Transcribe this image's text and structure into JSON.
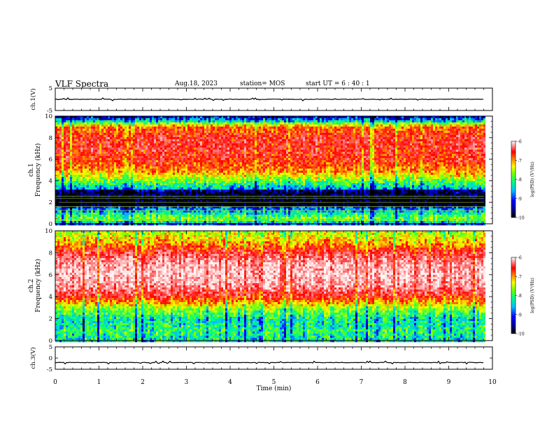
{
  "header": {
    "title": "VLF Spectra",
    "date": "Aug.18, 2023",
    "station": "station= MOS",
    "start": "start  UT  =   6  : 40 : 1"
  },
  "chart_data": [
    {
      "type": "line",
      "panel": "ch1-waveform",
      "ylabel": "ch.1(V)",
      "ylim": [
        -5,
        5
      ],
      "yticks": [
        "5",
        "-5"
      ],
      "series": [
        {
          "values_description": "flat trace near 0 V",
          "level": 0
        }
      ]
    },
    {
      "type": "heatmap",
      "panel": "ch1-spectrogram",
      "ylabel": "ch.1\nFrequency (kHz)",
      "ylim": [
        0,
        10
      ],
      "yticks": [
        "0",
        "2",
        "4",
        "6",
        "8",
        "10"
      ],
      "xlim": [
        0,
        9.85
      ],
      "colorbar": {
        "label": "log(PSD) (V²/Hz)",
        "range": [
          -10,
          -6
        ],
        "ticks": [
          "-6",
          "-7",
          "-8",
          "-9",
          "-10"
        ]
      },
      "profile": [
        {
          "freq_khz": 0.0,
          "logpsd": -9.6
        },
        {
          "freq_khz": 0.5,
          "logpsd": -8.2
        },
        {
          "freq_khz": 1.0,
          "logpsd": -8.6
        },
        {
          "freq_khz": 2.0,
          "logpsd": -9.8
        },
        {
          "freq_khz": 3.0,
          "logpsd": -9.4
        },
        {
          "freq_khz": 4.0,
          "logpsd": -8.4
        },
        {
          "freq_khz": 5.0,
          "logpsd": -7.4
        },
        {
          "freq_khz": 6.0,
          "logpsd": -7.0
        },
        {
          "freq_khz": 7.0,
          "logpsd": -6.9
        },
        {
          "freq_khz": 8.0,
          "logpsd": -6.9
        },
        {
          "freq_khz": 9.0,
          "logpsd": -7.3
        },
        {
          "freq_khz": 9.5,
          "logpsd": -8.8
        },
        {
          "freq_khz": 10.0,
          "logpsd": -9.8
        }
      ]
    },
    {
      "type": "heatmap",
      "panel": "ch2-spectrogram",
      "ylabel": "ch.2\nFrequency (kHz)",
      "ylim": [
        0,
        10
      ],
      "yticks": [
        "0",
        "2",
        "4",
        "6",
        "8",
        "10"
      ],
      "xlim": [
        0,
        9.85
      ],
      "colorbar": {
        "label": "log(PSD) (V²/Hz)",
        "range": [
          -10,
          -6
        ],
        "ticks": [
          "-6",
          "-7",
          "-8",
          "-9",
          "-10"
        ]
      },
      "profile": [
        {
          "freq_khz": 0.0,
          "logpsd": -8.8
        },
        {
          "freq_khz": 1.0,
          "logpsd": -8.6
        },
        {
          "freq_khz": 2.0,
          "logpsd": -8.8
        },
        {
          "freq_khz": 3.0,
          "logpsd": -8.2
        },
        {
          "freq_khz": 4.0,
          "logpsd": -7.0
        },
        {
          "freq_khz": 5.0,
          "logpsd": -6.4
        },
        {
          "freq_khz": 6.0,
          "logpsd": -6.2
        },
        {
          "freq_khz": 7.0,
          "logpsd": -6.3
        },
        {
          "freq_khz": 8.0,
          "logpsd": -6.8
        },
        {
          "freq_khz": 9.0,
          "logpsd": -7.6
        },
        {
          "freq_khz": 10.0,
          "logpsd": -8.1
        }
      ]
    },
    {
      "type": "line",
      "panel": "ch3-waveform",
      "ylabel": "ch.3(V)",
      "ylim": [
        -5,
        5
      ],
      "yticks": [
        "5",
        "0",
        "-5"
      ],
      "series": [
        {
          "values_description": "flat trace near -2 V",
          "level": -2
        }
      ]
    }
  ],
  "xaxis": {
    "label": "Time  (min)",
    "range": [
      0,
      10
    ],
    "ticks": [
      "0",
      "1",
      "2",
      "3",
      "4",
      "5",
      "6",
      "7",
      "8",
      "9",
      "10"
    ]
  },
  "colors": {
    "scale": [
      "#00008b",
      "#0000ff",
      "#00bfff",
      "#00ff7f",
      "#7fff00",
      "#ffff00",
      "#ff8c00",
      "#ff0000",
      "#ffffff"
    ]
  }
}
